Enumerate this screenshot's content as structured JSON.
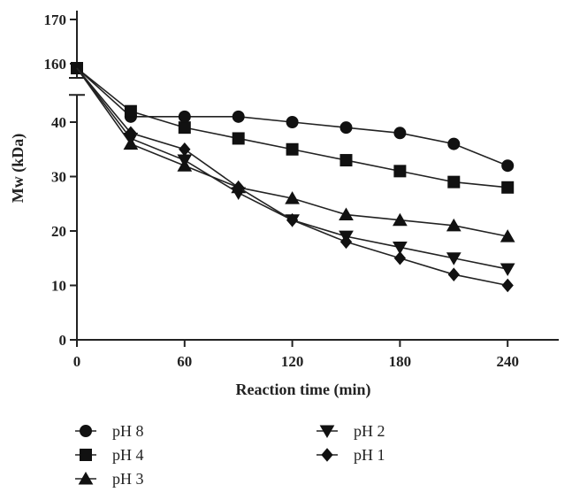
{
  "chart_data": {
    "type": "line",
    "title": "",
    "xlabel": "Reaction time (min)",
    "ylabel": "Mw (kDa)",
    "x_ticks": [
      "0",
      "60",
      "120",
      "180",
      "240"
    ],
    "y_ticks_lower": [
      "0",
      "10",
      "20",
      "30",
      "40"
    ],
    "y_ticks_upper": [
      "160",
      "170"
    ],
    "xlim": [
      0,
      270
    ],
    "ylim_lower": [
      0,
      45
    ],
    "ylim_upper": [
      154,
      172
    ],
    "y_axis_break": [
      45,
      154
    ],
    "series": [
      {
        "name": "pH 8",
        "marker": "circle",
        "x": [
          0,
          30,
          60,
          90,
          120,
          150,
          180,
          210,
          240
        ],
        "values": [
          159,
          41,
          41,
          41,
          40,
          39,
          38,
          36,
          32
        ]
      },
      {
        "name": "pH 4",
        "marker": "square",
        "x": [
          0,
          30,
          60,
          90,
          120,
          150,
          180,
          210,
          240
        ],
        "values": [
          159,
          42,
          39,
          37,
          35,
          33,
          31,
          29,
          28
        ]
      },
      {
        "name": "pH 3",
        "marker": "triangle-up",
        "x": [
          0,
          30,
          60,
          90,
          120,
          150,
          180,
          210,
          240
        ],
        "values": [
          159,
          36,
          32,
          28,
          26,
          23,
          22,
          21,
          19
        ]
      },
      {
        "name": "pH 2",
        "marker": "triangle-down",
        "x": [
          0,
          30,
          60,
          90,
          120,
          150,
          180,
          210,
          240
        ],
        "values": [
          159,
          37,
          33,
          27,
          22,
          19,
          17,
          15,
          13
        ]
      },
      {
        "name": "pH 1",
        "marker": "diamond",
        "x": [
          0,
          30,
          60,
          90,
          120,
          150,
          180,
          210,
          240
        ],
        "values": [
          159,
          38,
          35,
          28,
          22,
          18,
          15,
          12,
          10
        ]
      }
    ],
    "legend_position": "bottom",
    "legend_order": [
      "pH 8",
      "pH 2",
      "pH 4",
      "pH 1",
      "pH 3"
    ],
    "grid": false
  },
  "colors": {
    "line": "#222222",
    "marker": "#111111",
    "axis": "#222222"
  }
}
